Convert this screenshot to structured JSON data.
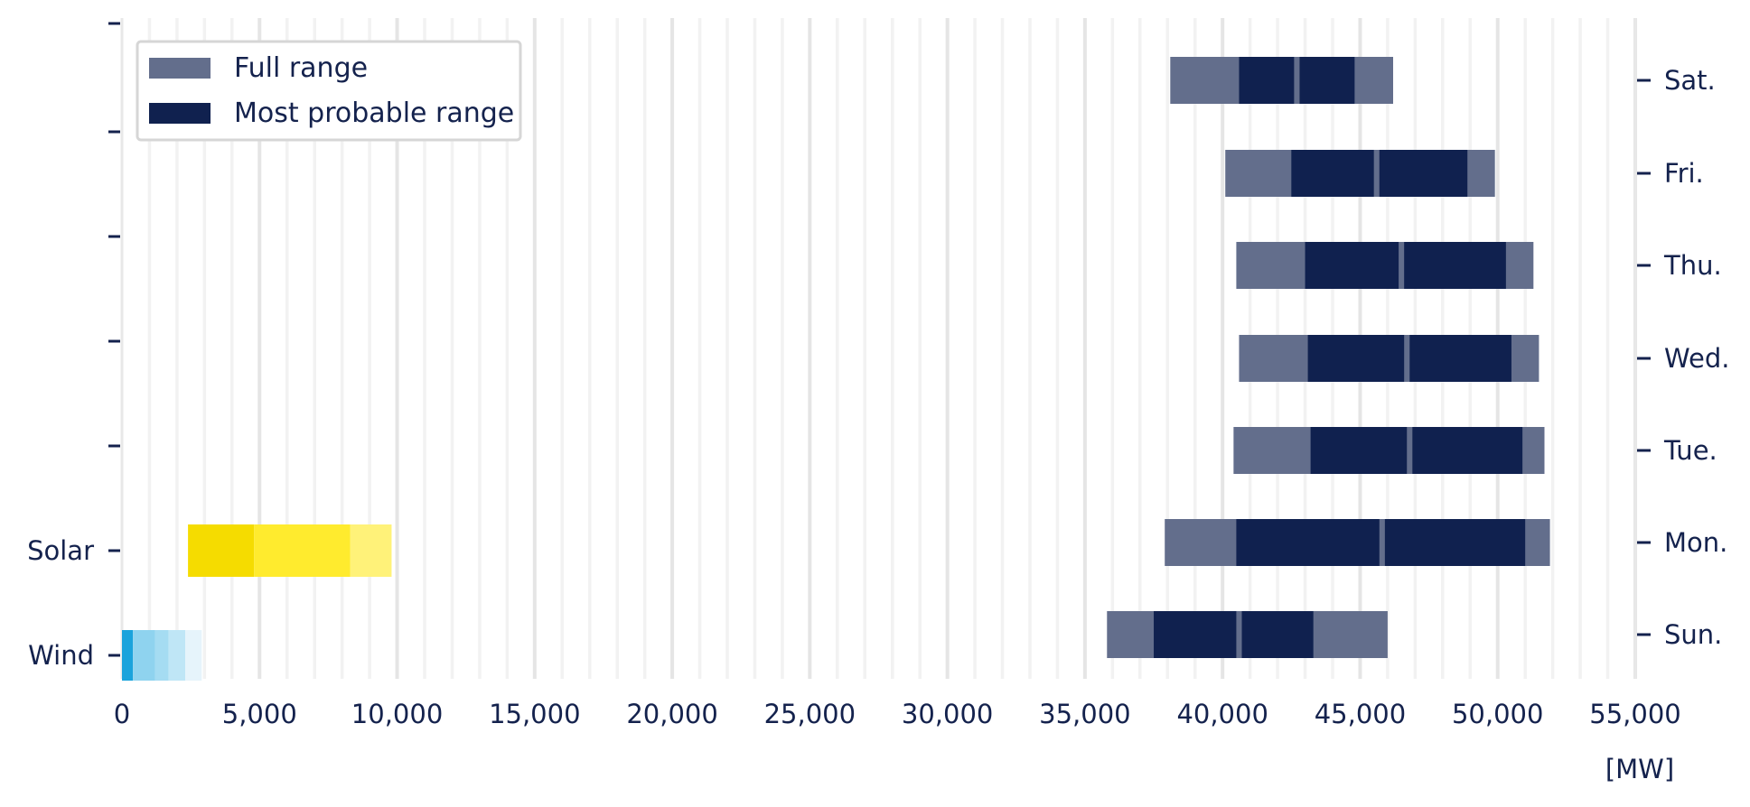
{
  "chart_data": {
    "type": "bar",
    "orientation": "horizontal",
    "x_unit": "[MW]",
    "xlim": [
      0,
      55000
    ],
    "x_ticks": [
      0,
      5000,
      10000,
      15000,
      20000,
      25000,
      30000,
      35000,
      40000,
      45000,
      50000,
      55000
    ],
    "x_tick_labels": [
      "0",
      "5,000",
      "10,000",
      "15,000",
      "20,000",
      "25,000",
      "30,000",
      "35,000",
      "40,000",
      "45,000",
      "50,000",
      "55,000"
    ],
    "grid": "vertical",
    "legend": {
      "placement": "top-left",
      "entries": [
        {
          "label": "Full range",
          "color": "#636e8c"
        },
        {
          "label": "Most probable range",
          "color": "#10214f"
        }
      ]
    },
    "left_axis_labels": [
      "Wind",
      "Solar"
    ],
    "right_axis_labels": [
      "Sun.",
      "Mon.",
      "Tue.",
      "Wed.",
      "Thu.",
      "Fri.",
      "Sat."
    ],
    "renewables": [
      {
        "name": "Wind",
        "segments": [
          {
            "start": 0,
            "end": 400,
            "color": "#1aa3dc"
          },
          {
            "start": 400,
            "end": 1200,
            "color": "#8fd3ef"
          },
          {
            "start": 1200,
            "end": 1700,
            "color": "#a5dcf2"
          },
          {
            "start": 1700,
            "end": 2300,
            "color": "#bfe6f6"
          },
          {
            "start": 2300,
            "end": 2900,
            "color": "#e6f4fb"
          }
        ]
      },
      {
        "name": "Solar",
        "segments": [
          {
            "start": 2400,
            "end": 4800,
            "color": "#f5dc00"
          },
          {
            "start": 4800,
            "end": 8300,
            "color": "#ffeb2e"
          },
          {
            "start": 8300,
            "end": 9800,
            "color": "#fff279"
          }
        ]
      }
    ],
    "days": [
      {
        "name": "Sun.",
        "full_range": [
          35800,
          46000
        ],
        "probable_range": [
          [
            37500,
            40500
          ],
          [
            40700,
            43300
          ]
        ]
      },
      {
        "name": "Mon.",
        "full_range": [
          37900,
          51900
        ],
        "probable_range": [
          [
            40500,
            45700
          ],
          [
            45900,
            51000
          ]
        ]
      },
      {
        "name": "Tue.",
        "full_range": [
          40400,
          51700
        ],
        "probable_range": [
          [
            43200,
            46700
          ],
          [
            46900,
            50900
          ]
        ]
      },
      {
        "name": "Wed.",
        "full_range": [
          40600,
          51500
        ],
        "probable_range": [
          [
            43100,
            46600
          ],
          [
            46800,
            50500
          ]
        ]
      },
      {
        "name": "Thu.",
        "full_range": [
          40500,
          51300
        ],
        "probable_range": [
          [
            43000,
            46400
          ],
          [
            46600,
            50300
          ]
        ]
      },
      {
        "name": "Fri.",
        "full_range": [
          40100,
          49900
        ],
        "probable_range": [
          [
            42500,
            45500
          ],
          [
            45700,
            48900
          ]
        ]
      },
      {
        "name": "Sat.",
        "full_range": [
          38100,
          46200
        ],
        "probable_range": [
          [
            40600,
            42600
          ],
          [
            42800,
            44800
          ]
        ]
      }
    ]
  }
}
